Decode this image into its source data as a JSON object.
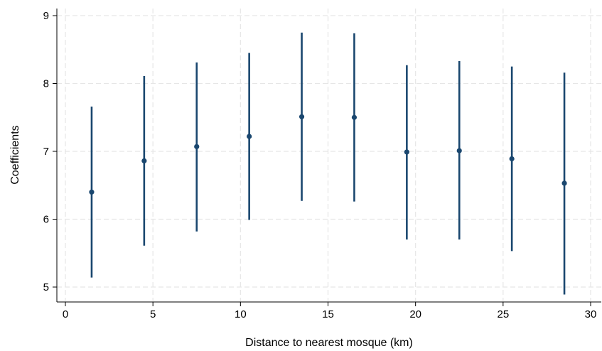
{
  "chart_data": {
    "type": "scatter",
    "subtype": "point-with-confidence-interval",
    "title": "",
    "xlabel": "Distance to nearest mosque (km)",
    "ylabel": "Coefficients",
    "xlim": [
      0,
      30.5
    ],
    "ylim": [
      4.8,
      9.1
    ],
    "xticks": [
      0,
      5,
      10,
      15,
      20,
      25,
      30
    ],
    "yticks": [
      5,
      6,
      7,
      8,
      9
    ],
    "grid": true,
    "legend": "none",
    "point_color": "#1a476f",
    "points": [
      {
        "x": 1.5,
        "y": 6.4,
        "lo": 5.14,
        "hi": 7.66
      },
      {
        "x": 4.5,
        "y": 6.86,
        "lo": 5.61,
        "hi": 8.11
      },
      {
        "x": 7.5,
        "y": 7.07,
        "lo": 5.82,
        "hi": 8.31
      },
      {
        "x": 10.5,
        "y": 7.22,
        "lo": 5.99,
        "hi": 8.45
      },
      {
        "x": 13.5,
        "y": 7.51,
        "lo": 6.27,
        "hi": 8.75
      },
      {
        "x": 16.5,
        "y": 7.5,
        "lo": 6.26,
        "hi": 8.74
      },
      {
        "x": 19.5,
        "y": 6.99,
        "lo": 5.7,
        "hi": 8.27
      },
      {
        "x": 22.5,
        "y": 7.01,
        "lo": 5.7,
        "hi": 8.33
      },
      {
        "x": 25.5,
        "y": 6.89,
        "lo": 5.53,
        "hi": 8.25
      },
      {
        "x": 28.5,
        "y": 6.53,
        "lo": 4.89,
        "hi": 8.16
      }
    ]
  }
}
